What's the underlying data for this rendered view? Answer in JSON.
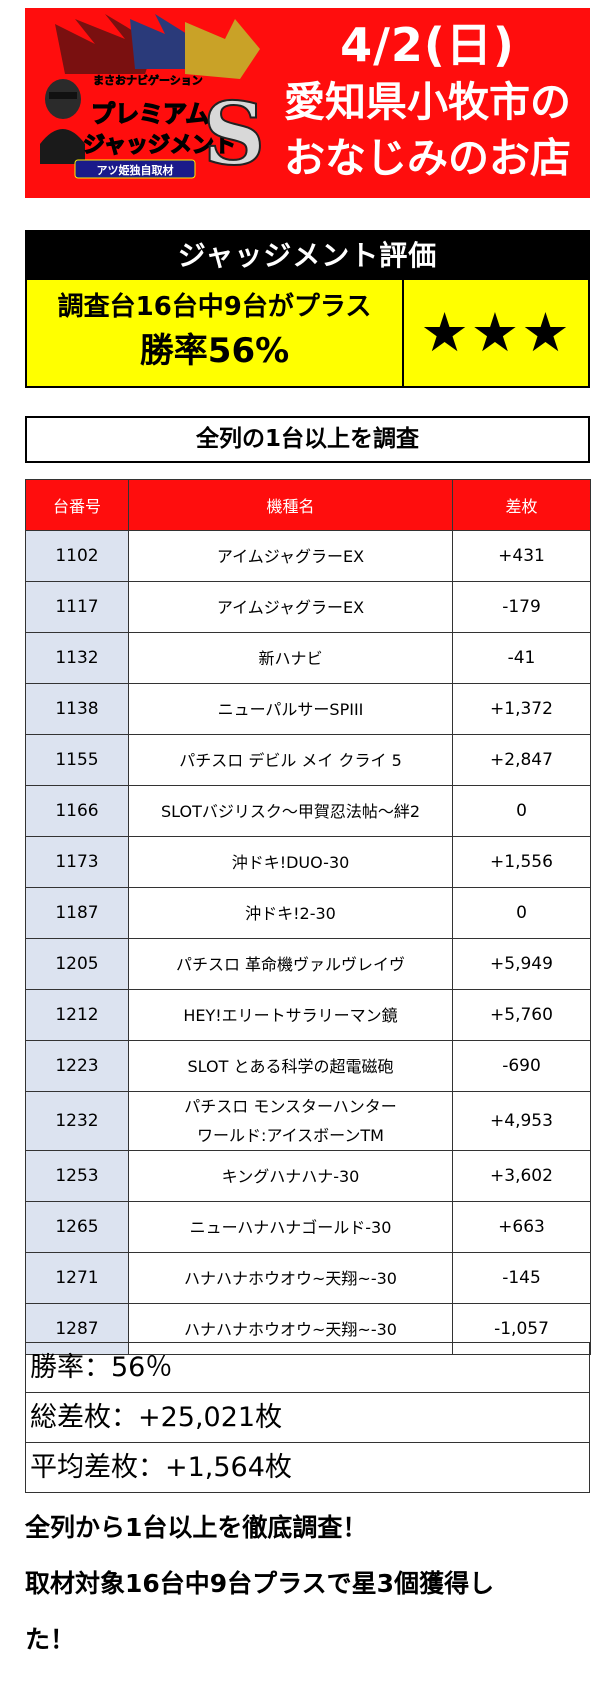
{
  "header": {
    "logo_small": "まさおナビゲーション",
    "logo_line1": "プレミアム",
    "logo_line2": "ジャッジメント",
    "logo_s": "S",
    "logo_banner": "アツ姫独自取材",
    "date": "4/2(日)",
    "location_line1": "愛知県小牧市の",
    "location_line2": "おなじみのお店",
    "bg_color": "#ff0d0d"
  },
  "judgment": {
    "title": "ジャッジメント評価",
    "line1": "調査台16台中9台がプラス",
    "line2": "勝率56%",
    "stars": "★★★",
    "bg_color": "#ffff00"
  },
  "scope": "全列の1台以上を調査",
  "table": {
    "headers": [
      "台番号",
      "機種名",
      "差枚"
    ],
    "rows": [
      {
        "num": "1102",
        "name": "アイムジャグラーEX",
        "diff": "+431"
      },
      {
        "num": "1117",
        "name": "アイムジャグラーEX",
        "diff": "-179"
      },
      {
        "num": "1132",
        "name": "新ハナビ",
        "diff": "-41"
      },
      {
        "num": "1138",
        "name": "ニューパルサーSPIII",
        "diff": "+1,372"
      },
      {
        "num": "1155",
        "name": "パチスロ デビル メイ クライ 5",
        "diff": "+2,847"
      },
      {
        "num": "1166",
        "name": "SLOTバジリスク～甲賀忍法帖～絆2",
        "diff": "0"
      },
      {
        "num": "1173",
        "name": "沖ドキ!DUO-30",
        "diff": "+1,556"
      },
      {
        "num": "1187",
        "name": "沖ドキ!2-30",
        "diff": "0"
      },
      {
        "num": "1205",
        "name": "パチスロ 革命機ヴァルヴレイヴ",
        "diff": "+5,949"
      },
      {
        "num": "1212",
        "name": "HEY!エリートサラリーマン鏡",
        "diff": "+5,760"
      },
      {
        "num": "1223",
        "name": "SLOT とある科学の超電磁砲",
        "diff": "-690"
      },
      {
        "num": "1232",
        "name_line1": "パチスロ モンスターハンター",
        "name_line2": "ワールド:アイスボーンTM",
        "diff": "+4,953"
      },
      {
        "num": "1253",
        "name": "キングハナハナ-30",
        "diff": "+3,602"
      },
      {
        "num": "1265",
        "name": "ニューハナハナゴールド-30",
        "diff": "+663"
      },
      {
        "num": "1271",
        "name": "ハナハナホウオウ~天翔~-30",
        "diff": "-145"
      },
      {
        "num": "1287",
        "name": "ハナハナホウオウ~天翔~-30",
        "diff": "-1,057"
      }
    ]
  },
  "summary": {
    "win_rate": "勝率：56％",
    "total_diff": "総差枚：+25,021枚",
    "avg_diff": "平均差枚：+1,564枚"
  },
  "footer": {
    "line1": "全列から1台以上を徹底調査！",
    "line2": "取材対象16台中9台プラスで星3個獲得し",
    "line3": "た！"
  }
}
